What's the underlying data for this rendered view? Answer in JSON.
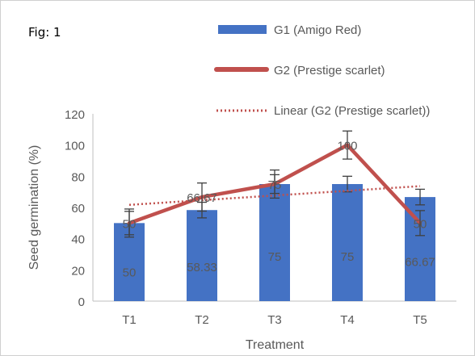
{
  "fig_label": "Fig: 1",
  "chart_data": {
    "type": "bar",
    "xlabel": "Treatment",
    "ylabel": "Seed germination (%)",
    "ylim": [
      0,
      120
    ],
    "yticks": [
      0,
      20,
      40,
      60,
      80,
      100,
      120
    ],
    "categories": [
      "T1",
      "T2",
      "T3",
      "T4",
      "T5"
    ],
    "series": [
      {
        "name": "G1 (Amigo Red)",
        "type": "bar",
        "color": "#4472c4",
        "values": [
          50,
          58.33,
          75,
          75,
          66.67
        ],
        "data_labels": [
          "50",
          "58.33",
          "75",
          "75",
          "66.67"
        ],
        "error": [
          7.5,
          5,
          6,
          5,
          5
        ]
      },
      {
        "name": "G2 (Prestige scarlet)",
        "type": "line",
        "color": "#c0504d",
        "values": [
          50,
          66.67,
          75,
          100,
          50
        ],
        "data_labels": [
          "50",
          "66.67",
          "75",
          "100",
          "50"
        ],
        "error": [
          9,
          9,
          9,
          9,
          8
        ]
      },
      {
        "name": "Linear (G2 (Prestige scarlet))",
        "type": "trendline",
        "color": "#c0504d",
        "values": [
          61.67,
          64.67,
          67.67,
          70.67,
          73.67
        ]
      }
    ],
    "grid": false,
    "legend": "top-right"
  }
}
